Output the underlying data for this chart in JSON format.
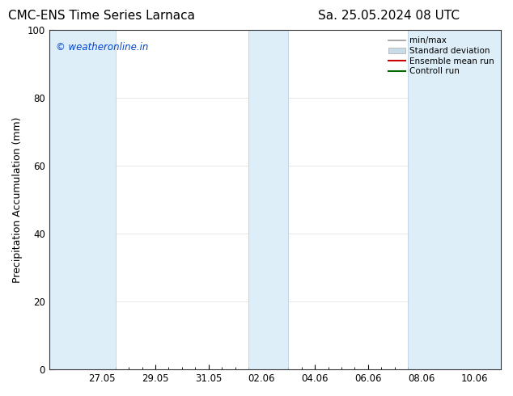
{
  "title_left": "CMC-ENS Time Series Larnaca",
  "title_right": "Sa. 25.05.2024 08 UTC",
  "ylabel": "Precipitation Accumulation (mm)",
  "watermark": "© weatheronline.in",
  "ylim": [
    0,
    100
  ],
  "yticks": [
    0,
    20,
    40,
    60,
    80,
    100
  ],
  "xtick_labels": [
    "27.05",
    "29.05",
    "31.05",
    "02.06",
    "04.06",
    "06.06",
    "08.06",
    "10.06"
  ],
  "xtick_positions": [
    2,
    4,
    6,
    8,
    10,
    12,
    14,
    16
  ],
  "x_min": 0,
  "x_max": 17,
  "shaded_bands": [
    {
      "x_start": 0,
      "x_end": 2.5
    },
    {
      "x_start": 7.5,
      "x_end": 9.0
    },
    {
      "x_start": 13.5,
      "x_end": 17
    }
  ],
  "shaded_color": "#ddeef8",
  "shaded_edge_color": "#b0cce0",
  "legend_labels": [
    "min/max",
    "Standard deviation",
    "Ensemble mean run",
    "Controll run"
  ],
  "legend_colors": [
    "#999999",
    "#c8dcea",
    "#cc0000",
    "#006600"
  ],
  "watermark_color": "#0044cc",
  "background_color": "#ffffff",
  "title_fontsize": 11,
  "label_fontsize": 9,
  "tick_fontsize": 8.5,
  "legend_fontsize": 7.5
}
